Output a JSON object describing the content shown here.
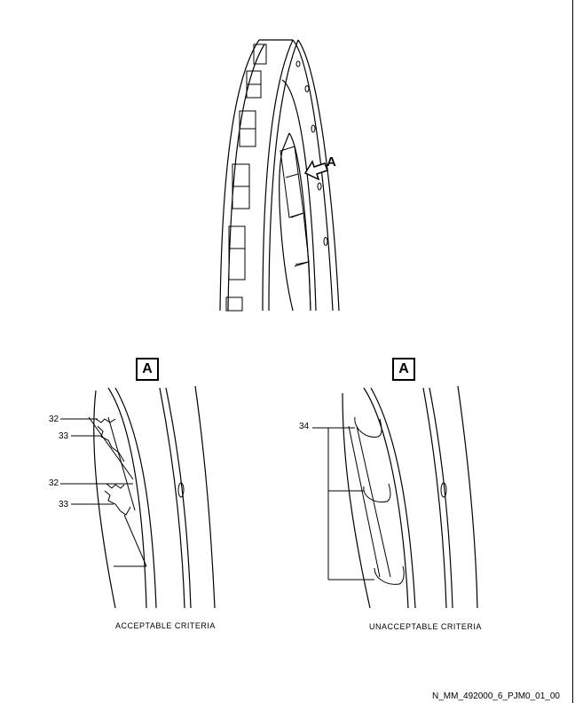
{
  "callout_letter": "A",
  "view_tags": {
    "left": "A",
    "right": "A"
  },
  "acceptable": {
    "caption": "ACCEPTABLE CRITERIA",
    "labels": [
      "32",
      "33",
      "32",
      "33"
    ]
  },
  "unacceptable": {
    "caption": "UNACCEPTABLE CRITERIA",
    "label": "34"
  },
  "figure_id": "N_MM_492000_6_PJM0_01_00"
}
